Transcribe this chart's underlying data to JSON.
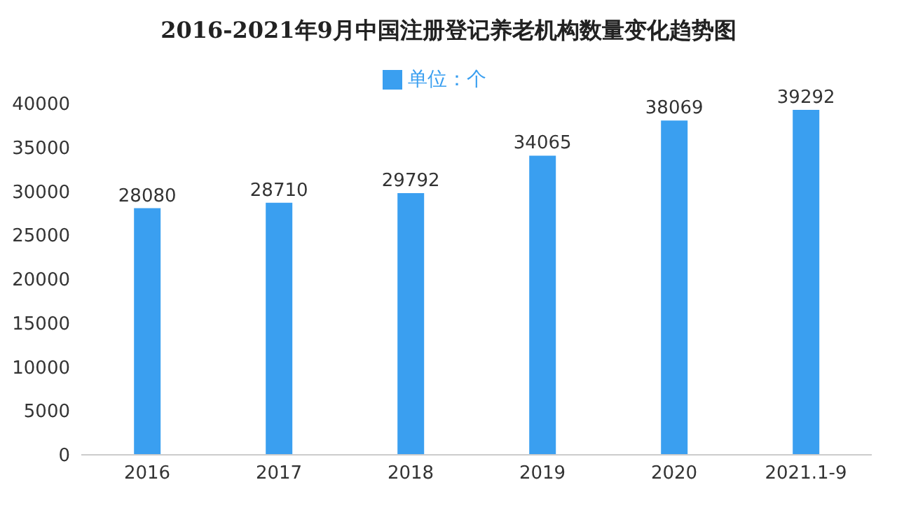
{
  "chart_data": {
    "type": "bar",
    "title": "2016-2021年9月中国注册登记养老机构数量变化趋势图",
    "categories": [
      "2016",
      "2017",
      "2018",
      "2019",
      "2020",
      "2021.1-9"
    ],
    "series": [
      {
        "name": "单位：个",
        "color": "#3a9ff0",
        "values": [
          28080,
          28710,
          29792,
          34065,
          38069,
          39292
        ]
      }
    ],
    "ylim": [
      0,
      40000
    ],
    "yticks": [
      0,
      5000,
      10000,
      15000,
      20000,
      25000,
      30000,
      35000,
      40000
    ],
    "grid": false,
    "legend": "top",
    "data_labels": true
  }
}
